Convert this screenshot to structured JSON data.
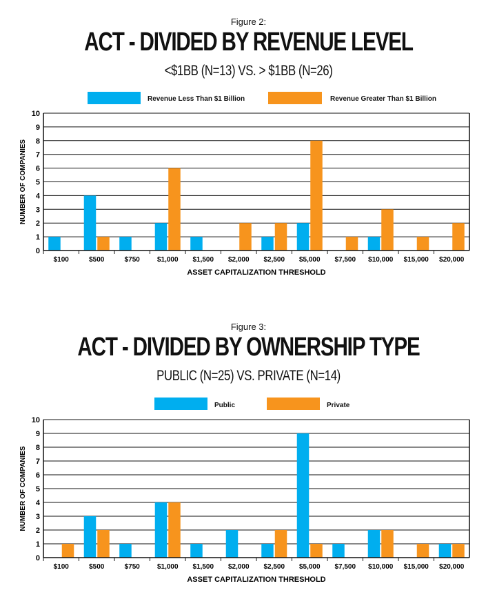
{
  "colors": {
    "blue": "#00aeef",
    "orange": "#f7941d",
    "grid": "#111111"
  },
  "chart_data": [
    {
      "type": "bar",
      "figure_label": "Figure 2:",
      "title": "ACT - DIVIDED BY REVENUE LEVEL",
      "subtitle": "<$1BB (N=13) VS. > $1BB (N=26)",
      "xlabel": "ASSET CAPITALIZATION THRESHOLD",
      "ylabel": "NUMBER OF COMPANIES",
      "ylim": [
        0,
        10
      ],
      "yticks": [
        "0",
        "1",
        "2",
        "3",
        "4",
        "5",
        "6",
        "7",
        "8",
        "9",
        "10"
      ],
      "grid": true,
      "legend_position": "top",
      "categories": [
        "$100",
        "$500",
        "$750",
        "$1,000",
        "$1,500",
        "$2,000",
        "$2,500",
        "$5,000",
        "$7,500",
        "$10,000",
        "$15,000",
        "$20,000"
      ],
      "series": [
        {
          "name": "Revenue Less Than $1 Billion",
          "color": "#00aeef",
          "values": [
            1,
            4,
            1,
            2,
            1,
            0,
            1,
            2,
            0,
            1,
            0,
            0
          ]
        },
        {
          "name": "Revenue Greater Than $1 Billion",
          "color": "#f7941d",
          "values": [
            0,
            1,
            0,
            6,
            0,
            2,
            2,
            8,
            1,
            3,
            1,
            2
          ]
        }
      ]
    },
    {
      "type": "bar",
      "figure_label": "Figure 3:",
      "title": "ACT - DIVIDED BY OWNERSHIP TYPE",
      "subtitle": "PUBLIC (N=25) VS. PRIVATE (N=14)",
      "xlabel": "ASSET CAPITALIZATION THRESHOLD",
      "ylabel": "NUMBER OF COMPANIES",
      "ylim": [
        0,
        10
      ],
      "yticks": [
        "0",
        "1",
        "2",
        "3",
        "4",
        "5",
        "6",
        "7",
        "8",
        "9",
        "10"
      ],
      "grid": true,
      "legend_position": "top",
      "categories": [
        "$100",
        "$500",
        "$750",
        "$1,000",
        "$1,500",
        "$2,000",
        "$2,500",
        "$5,000",
        "$7,500",
        "$10,000",
        "$15,000",
        "$20,000"
      ],
      "series": [
        {
          "name": "Public",
          "color": "#00aeef",
          "values": [
            0,
            3,
            1,
            4,
            1,
            2,
            1,
            9,
            1,
            2,
            0,
            1
          ]
        },
        {
          "name": "Private",
          "color": "#f7941d",
          "values": [
            1,
            2,
            0,
            4,
            0,
            0,
            2,
            1,
            0,
            2,
            1,
            1
          ]
        }
      ]
    }
  ]
}
